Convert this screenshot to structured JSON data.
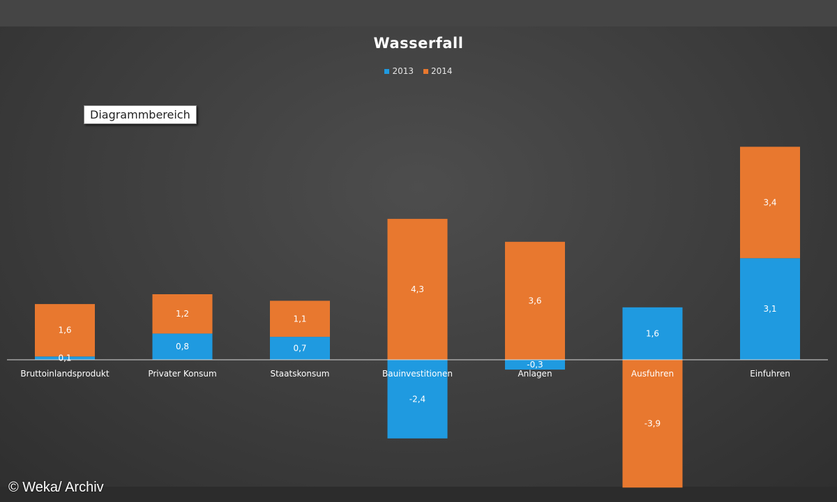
{
  "chart_data": {
    "type": "bar",
    "stacked": true,
    "title": "Wasserfall",
    "categories": [
      "Bruttoinlandsprodukt",
      "Privater Konsum",
      "Staatskonsum",
      "Bauinvestitionen",
      "Anlagen",
      "Ausfuhren",
      "Einfuhren"
    ],
    "series": [
      {
        "name": "2013",
        "color": "#1f9ae0",
        "values": [
          0.1,
          0.8,
          0.7,
          -2.4,
          -0.3,
          1.6,
          3.1
        ],
        "labels": [
          "0,1",
          "0,8",
          "0,7",
          "-2,4",
          "-0,3",
          "1,6",
          "3,1"
        ]
      },
      {
        "name": "2014",
        "color": "#e8782f",
        "values": [
          1.6,
          1.2,
          1.1,
          4.3,
          3.6,
          -3.9,
          3.4
        ],
        "labels": [
          "1,6",
          "1,2",
          "1,1",
          "4,3",
          "3,6",
          "-3,9",
          "3,4"
        ]
      }
    ],
    "legend_position": "top",
    "grid": false
  },
  "tooltip": "Diagrammbereich",
  "credit": "© Weka/ Archiv"
}
